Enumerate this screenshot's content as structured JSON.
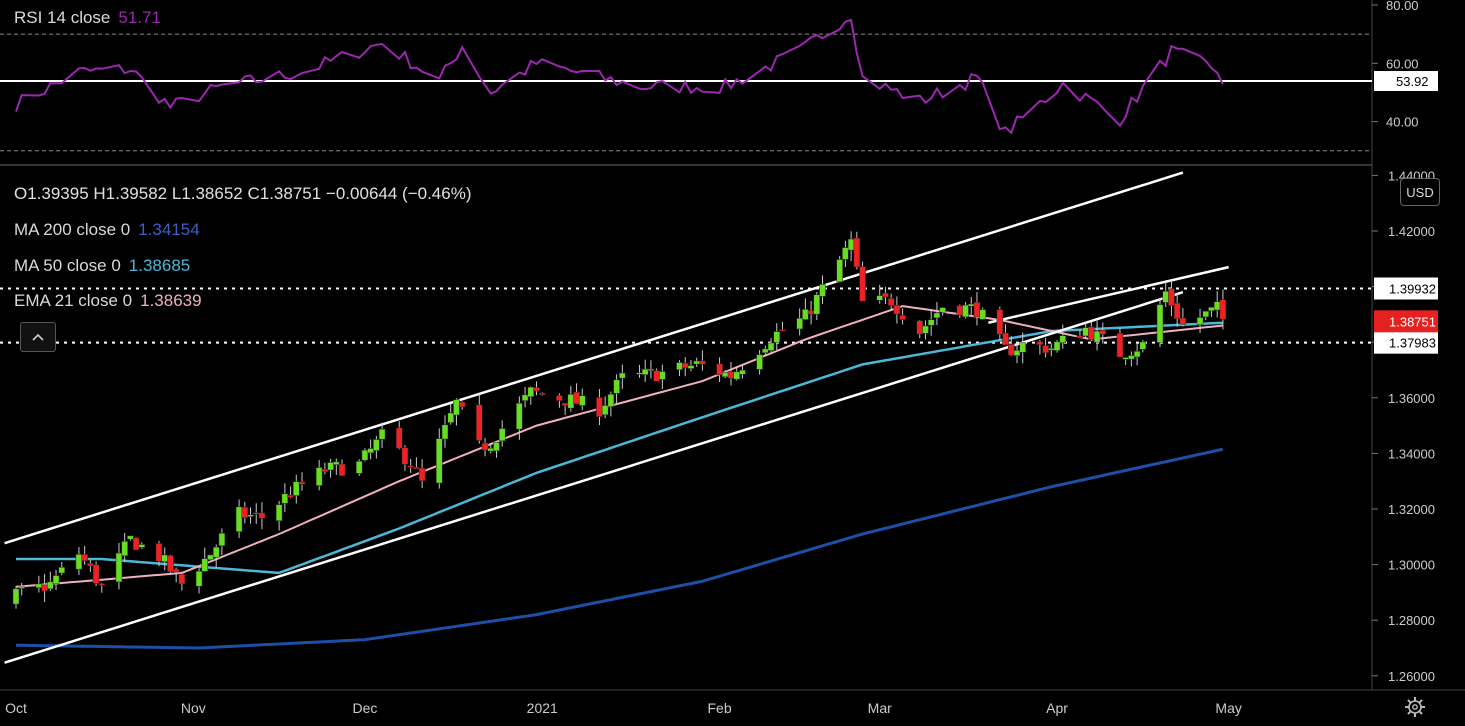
{
  "rsi": {
    "label": "RSI 14 close",
    "value": "51.71",
    "level_label": "53.92",
    "level": 53.92,
    "yticks": [
      "80.00",
      "60.00",
      "40.00"
    ],
    "ytick_values": [
      80,
      60,
      40
    ],
    "upper_band": 70,
    "lower_band": 30,
    "color": "#9c27b0"
  },
  "legend": {
    "ohlc": "O1.39395  H1.39582  L1.38652  C1.38751  −0.00644 (−0.46%)",
    "ma200_label": "MA 200 close 0",
    "ma200_value": "1.34154",
    "ma50_label": "MA 50 close 0",
    "ma50_value": "1.38685",
    "ema21_label": "EMA 21 close 0",
    "ema21_value": "1.38639"
  },
  "currency": "USD",
  "price_axis": {
    "ticks": [
      "1.44000",
      "1.42000",
      "1.40000",
      "1.38000",
      "1.36000",
      "1.34000",
      "1.32000",
      "1.30000",
      "1.28000",
      "1.26000"
    ],
    "tick_values": [
      1.44,
      1.42,
      1.4,
      1.38,
      1.36,
      1.34,
      1.32,
      1.3,
      1.28,
      1.26
    ],
    "level_high": "1.39932",
    "level_high_value": 1.39932,
    "level_low": "1.37983",
    "level_low_value": 1.37983,
    "last_price": "1.38751",
    "last_price_value": 1.38751
  },
  "time_axis": [
    "Oct",
    "Nov",
    "Dec",
    "2021",
    "Feb",
    "Mar",
    "Apr",
    "May"
  ],
  "colors": {
    "up": "#66dd22",
    "down": "#ee2222",
    "ma200": "#1e4fa8",
    "ma50": "#4cb8d8",
    "ema21": "#f0b0c0",
    "channel": "#ffffff",
    "last_price_bg": "#e52222"
  },
  "chart_data": {
    "type": "candlestick",
    "title": "",
    "x_range": [
      "2020-10-01",
      "2021-04-30"
    ],
    "ylim": [
      1.255,
      1.445
    ],
    "anchors": {
      "close_path": [
        [
          "2020-10-01",
          1.289
        ],
        [
          "2020-10-07",
          1.293
        ],
        [
          "2020-10-12",
          1.304
        ],
        [
          "2020-10-16",
          1.292
        ],
        [
          "2020-10-21",
          1.309
        ],
        [
          "2020-10-26",
          1.303
        ],
        [
          "2020-10-30",
          1.293
        ],
        [
          "2020-11-04",
          1.304
        ],
        [
          "2020-11-09",
          1.318
        ],
        [
          "2020-11-13",
          1.317
        ],
        [
          "2020-11-18",
          1.326
        ],
        [
          "2020-11-24",
          1.334
        ],
        [
          "2020-11-30",
          1.336
        ],
        [
          "2020-12-04",
          1.346
        ],
        [
          "2020-12-09",
          1.337
        ],
        [
          "2020-12-11",
          1.329
        ],
        [
          "2020-12-17",
          1.358
        ],
        [
          "2020-12-21",
          1.342
        ],
        [
          "2020-12-23",
          1.344
        ],
        [
          "2020-12-30",
          1.362
        ],
        [
          "2021-01-06",
          1.359
        ],
        [
          "2021-01-11",
          1.356
        ],
        [
          "2021-01-15",
          1.367
        ],
        [
          "2021-01-22",
          1.369
        ],
        [
          "2021-01-28",
          1.372
        ],
        [
          "2021-02-03",
          1.368
        ],
        [
          "2021-02-10",
          1.382
        ],
        [
          "2021-02-16",
          1.389
        ],
        [
          "2021-02-24",
          1.416
        ],
        [
          "2021-02-26",
          1.394
        ],
        [
          "2021-03-03",
          1.395
        ],
        [
          "2021-03-08",
          1.384
        ],
        [
          "2021-03-12",
          1.393
        ],
        [
          "2021-03-18",
          1.392
        ],
        [
          "2021-03-23",
          1.377
        ],
        [
          "2021-03-26",
          1.379
        ],
        [
          "2021-03-31",
          1.378
        ],
        [
          "2021-04-06",
          1.385
        ],
        [
          "2021-04-12",
          1.376
        ],
        [
          "2021-04-16",
          1.379
        ],
        [
          "2021-04-20",
          1.398
        ],
        [
          "2021-04-23",
          1.386
        ],
        [
          "2021-04-29",
          1.392
        ],
        [
          "2021-04-30",
          1.388
        ]
      ],
      "ema21_path": [
        [
          "2020-10-01",
          1.292
        ],
        [
          "2020-10-30",
          1.297
        ],
        [
          "2020-11-16",
          1.311
        ],
        [
          "2020-12-07",
          1.33
        ],
        [
          "2020-12-31",
          1.35
        ],
        [
          "2021-01-29",
          1.366
        ],
        [
          "2021-02-16",
          1.381
        ],
        [
          "2021-03-05",
          1.393
        ],
        [
          "2021-03-22",
          1.388
        ],
        [
          "2021-04-07",
          1.381
        ],
        [
          "2021-04-30",
          1.386
        ]
      ],
      "ma50_path": [
        [
          "2020-10-01",
          1.302
        ],
        [
          "2020-10-16",
          1.302
        ],
        [
          "2020-11-16",
          1.297
        ],
        [
          "2020-12-07",
          1.313
        ],
        [
          "2020-12-31",
          1.333
        ],
        [
          "2021-01-29",
          1.353
        ],
        [
          "2021-02-26",
          1.372
        ],
        [
          "2021-03-31",
          1.384
        ],
        [
          "2021-04-30",
          1.387
        ]
      ],
      "ma200_path": [
        [
          "2020-10-01",
          1.271
        ],
        [
          "2020-11-02",
          1.27
        ],
        [
          "2020-12-01",
          1.273
        ],
        [
          "2020-12-31",
          1.282
        ],
        [
          "2021-01-29",
          1.294
        ],
        [
          "2021-02-26",
          1.311
        ],
        [
          "2021-03-31",
          1.328
        ],
        [
          "2021-04-30",
          1.3415
        ]
      ],
      "rsi_path": [
        [
          "2020-10-01",
          46
        ],
        [
          "2020-10-12",
          57
        ],
        [
          "2020-10-21",
          58
        ],
        [
          "2020-10-28",
          45
        ],
        [
          "2020-11-06",
          52
        ],
        [
          "2020-11-20",
          57
        ],
        [
          "2020-12-04",
          67
        ],
        [
          "2020-12-14",
          54
        ],
        [
          "2020-12-18",
          66
        ],
        [
          "2020-12-23",
          50
        ],
        [
          "2020-12-31",
          60
        ],
        [
          "2021-01-18",
          52
        ],
        [
          "2021-02-02",
          52
        ],
        [
          "2021-02-15",
          64
        ],
        [
          "2021-02-24",
          77
        ],
        [
          "2021-02-26",
          55
        ],
        [
          "2021-03-08",
          47
        ],
        [
          "2021-03-18",
          55
        ],
        [
          "2021-03-23",
          36
        ],
        [
          "2021-04-02",
          53
        ],
        [
          "2021-04-12",
          41
        ],
        [
          "2021-04-21",
          64
        ],
        [
          "2021-04-29",
          58
        ],
        [
          "2021-04-30",
          51.7
        ]
      ],
      "channel_upper": [
        [
          "2020-10-01",
          1.309
        ],
        [
          "2021-04-23",
          1.441
        ]
      ],
      "channel_lower": [
        [
          "2020-10-01",
          1.266
        ],
        [
          "2021-04-23",
          1.398
        ]
      ],
      "channel_upper2": [
        [
          "2021-03-20",
          1.387
        ],
        [
          "2021-05-01",
          1.407
        ]
      ]
    }
  }
}
